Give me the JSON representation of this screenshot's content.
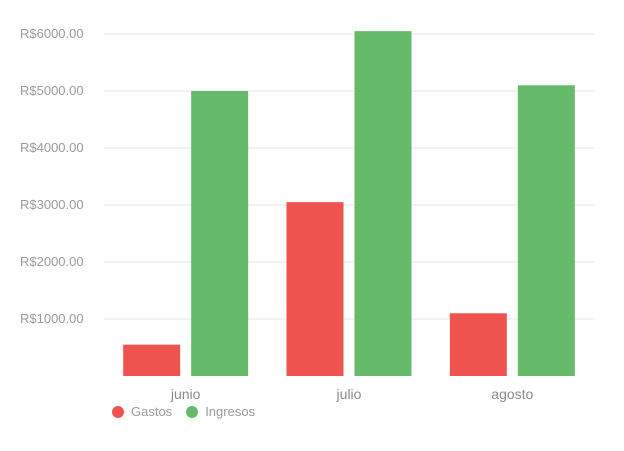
{
  "chart_data": {
    "type": "bar",
    "categories": [
      "junio",
      "julio",
      "agosto"
    ],
    "series": [
      {
        "name": "Gastos",
        "color": "#ef5350",
        "values": [
          550,
          3050,
          1100
        ]
      },
      {
        "name": "Ingresos",
        "color": "#66bb6a",
        "values": [
          5000,
          6050,
          5100
        ]
      }
    ],
    "ylim": [
      0,
      6000
    ],
    "yticks": [
      1000,
      2000,
      3000,
      4000,
      5000,
      6000
    ],
    "ytick_labels": [
      "R$1000.00",
      "R$2000.00",
      "R$3000.00",
      "R$4000.00",
      "R$5000.00",
      "R$6000.00"
    ],
    "grid": true,
    "legend_position": "bottom-left"
  }
}
